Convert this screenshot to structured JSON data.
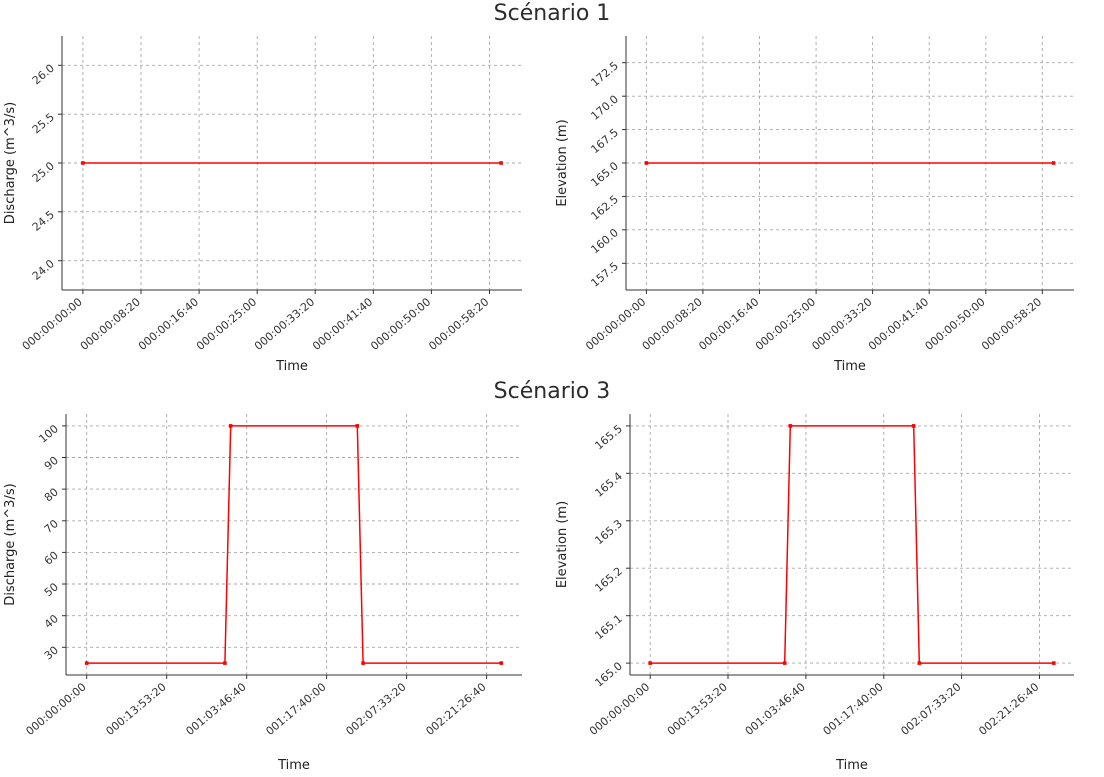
{
  "titles": {
    "scenario1": "Scénario 1",
    "scenario3": "Scénario 3"
  },
  "style": {
    "line_color": "#ff0000",
    "grid_color": "#a9a9a9",
    "background": "#ffffff"
  },
  "chart_data": [
    {
      "id": "scenario1-discharge",
      "type": "line",
      "group_title": "Scénario 1",
      "xlabel": "Time",
      "ylabel": "Discharge (m^3/s)",
      "grid": true,
      "legend": "none",
      "xlim": [
        -180,
        3780
      ],
      "ylim": [
        23.7,
        26.3
      ],
      "x_tick_values": [
        0,
        500,
        1000,
        1500,
        2000,
        2500,
        3000,
        3500
      ],
      "x_tick_labels": [
        "000:00:00:00",
        "000:00:08:20",
        "000:00:16:40",
        "000:00:25:00",
        "000:00:33:20",
        "000:00:41:40",
        "000:00:50:00",
        "000:00:58:20"
      ],
      "y_tick_values": [
        24.0,
        24.5,
        25.0,
        25.5,
        26.0
      ],
      "y_tick_labels": [
        "24.0",
        "24.5",
        "25.0",
        "25.5",
        "26.0"
      ],
      "series": [
        {
          "name": "Discharge",
          "color": "#ff0000",
          "points": [
            [
              0,
              25.0
            ],
            [
              3600,
              25.0
            ]
          ]
        }
      ]
    },
    {
      "id": "scenario1-elevation",
      "type": "line",
      "group_title": "Scénario 1",
      "xlabel": "Time",
      "ylabel": "Elevation (m)",
      "grid": true,
      "legend": "none",
      "xlim": [
        -180,
        3780
      ],
      "ylim": [
        155.5,
        174.5
      ],
      "x_tick_values": [
        0,
        500,
        1000,
        1500,
        2000,
        2500,
        3000,
        3500
      ],
      "x_tick_labels": [
        "000:00:00:00",
        "000:00:08:20",
        "000:00:16:40",
        "000:00:25:00",
        "000:00:33:20",
        "000:00:41:40",
        "000:00:50:00",
        "000:00:58:20"
      ],
      "y_tick_values": [
        157.5,
        160.0,
        162.5,
        165.0,
        167.5,
        170.0,
        172.5
      ],
      "y_tick_labels": [
        "157.5",
        "160.0",
        "162.5",
        "165.0",
        "167.5",
        "170.0",
        "172.5"
      ],
      "series": [
        {
          "name": "Elevation",
          "color": "#ff0000",
          "points": [
            [
              0,
              165.0
            ],
            [
              3600,
              165.0
            ]
          ]
        }
      ]
    },
    {
      "id": "scenario3-discharge",
      "type": "line",
      "group_title": "Scénario 3",
      "xlabel": "Time",
      "ylabel": "Discharge (m^3/s)",
      "grid": true,
      "legend": "none",
      "xlim": [
        -12960,
        272160
      ],
      "ylim": [
        21.25,
        103.75
      ],
      "x_tick_values": [
        0,
        50000,
        100000,
        150000,
        200000,
        250000
      ],
      "x_tick_labels": [
        "000:00:00:00",
        "000:13:53:20",
        "001:03:46:40",
        "001:17:40:00",
        "002:07:33:20",
        "002:21:26:40"
      ],
      "y_tick_values": [
        30,
        40,
        50,
        60,
        70,
        80,
        90,
        100
      ],
      "y_tick_labels": [
        "30",
        "40",
        "50",
        "60",
        "70",
        "80",
        "90",
        "100"
      ],
      "series": [
        {
          "name": "Discharge",
          "color": "#ff0000",
          "points": [
            [
              0,
              25
            ],
            [
              86400,
              25
            ],
            [
              90000,
              100
            ],
            [
              169200,
              100
            ],
            [
              172800,
              25
            ],
            [
              259200,
              25
            ]
          ]
        }
      ]
    },
    {
      "id": "scenario3-elevation",
      "type": "line",
      "group_title": "Scénario 3",
      "xlabel": "Time",
      "ylabel": "Elevation (m)",
      "grid": true,
      "legend": "none",
      "xlim": [
        -12960,
        272160
      ],
      "ylim": [
        164.975,
        165.525
      ],
      "x_tick_values": [
        0,
        50000,
        100000,
        150000,
        200000,
        250000
      ],
      "x_tick_labels": [
        "000:00:00:00",
        "000:13:53:20",
        "001:03:46:40",
        "001:17:40:00",
        "002:07:33:20",
        "002:21:26:40"
      ],
      "y_tick_values": [
        165.0,
        165.1,
        165.2,
        165.3,
        165.4,
        165.5
      ],
      "y_tick_labels": [
        "165.0",
        "165.1",
        "165.2",
        "165.3",
        "165.4",
        "165.5"
      ],
      "series": [
        {
          "name": "Elevation",
          "color": "#ff0000",
          "points": [
            [
              0,
              165.0
            ],
            [
              86400,
              165.0
            ],
            [
              90000,
              165.5
            ],
            [
              169200,
              165.5
            ],
            [
              172800,
              165.0
            ],
            [
              259200,
              165.0
            ]
          ]
        }
      ]
    }
  ]
}
